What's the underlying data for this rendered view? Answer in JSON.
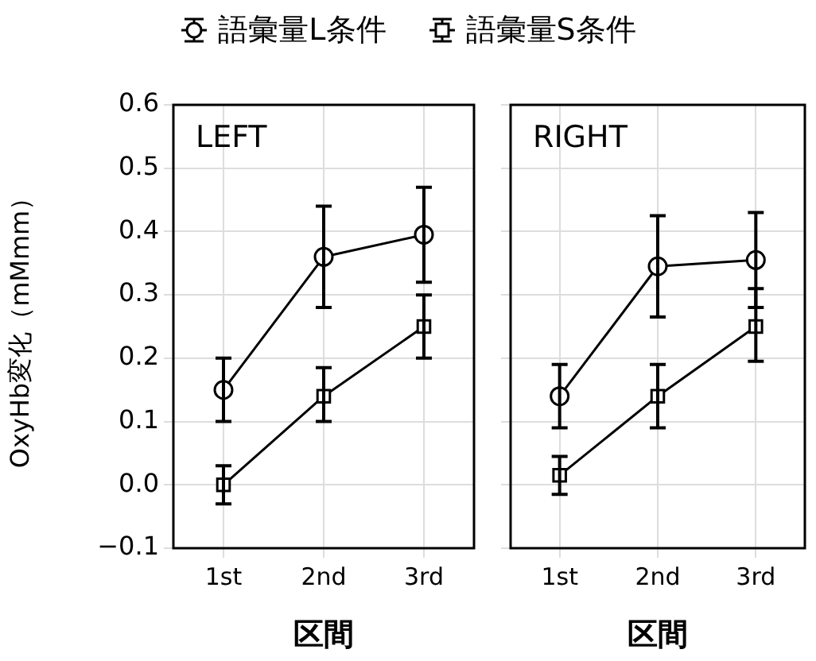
{
  "chart_data": [
    {
      "type": "line",
      "annotations": [
        "LEFT"
      ],
      "xlabel": "区間",
      "ylabel": "OxyHb変化（mMmm）",
      "categories": [
        "1st",
        "2nd",
        "3rd"
      ],
      "series": [
        {
          "name": "語彙量L条件",
          "color": "#000000",
          "marker": "circle",
          "values": [
            0.15,
            0.36,
            0.395
          ],
          "errors": [
            [
              0.1,
              0.2
            ],
            [
              0.28,
              0.44
            ],
            [
              0.32,
              0.47
            ]
          ]
        },
        {
          "name": "語彙量S条件",
          "color": "#000000",
          "marker": "square",
          "values": [
            0.0,
            0.14,
            0.25
          ],
          "errors": [
            [
              -0.03,
              0.03
            ],
            [
              0.1,
              0.185
            ],
            [
              0.2,
              0.3
            ]
          ]
        }
      ],
      "ylim": [
        -0.1,
        0.6
      ],
      "yticks": [
        {
          "value": -0.1,
          "label": "−0.1"
        },
        {
          "value": 0,
          "label": "0.0"
        },
        0.1,
        0.2,
        0.3,
        0.4,
        0.5,
        0.6
      ],
      "grid": true,
      "legend": "top"
    },
    {
      "type": "line",
      "annotations": [
        "RIGHT"
      ],
      "xlabel": "区間",
      "categories": [
        "1st",
        "2nd",
        "3rd"
      ],
      "series": [
        {
          "color": "#000000",
          "marker": "circle",
          "values": [
            0.14,
            0.345,
            0.355
          ],
          "errors": [
            [
              0.09,
              0.19
            ],
            [
              0.265,
              0.425
            ],
            [
              0.28,
              0.43
            ]
          ]
        },
        {
          "color": "#000000",
          "marker": "square",
          "values": [
            0.015,
            0.14,
            0.25
          ],
          "errors": [
            [
              -0.015,
              0.045
            ],
            [
              0.09,
              0.19
            ],
            [
              0.195,
              0.31
            ]
          ]
        }
      ],
      "ylim": [
        -0.1,
        0.6
      ],
      "yticks": [
        -0.1,
        0,
        0.1,
        0.2,
        0.3,
        0.4,
        0.5,
        0.6
      ],
      "grid": true,
      "tick_labels": "x"
    }
  ]
}
